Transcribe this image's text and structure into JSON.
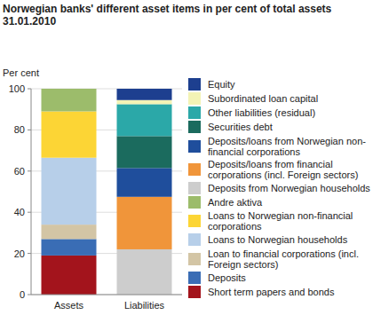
{
  "chart_data": {
    "type": "bar",
    "stacked": true,
    "title": "Norwegian banks' different asset items in per cent of total assets",
    "subtitle": "31.01.2010",
    "y_label": "Per cent",
    "categories": [
      "Assets",
      "Liabilities"
    ],
    "ylim": [
      0,
      100
    ],
    "yticks": [
      0,
      20,
      40,
      60,
      80,
      100
    ],
    "grid": true,
    "legend": "right",
    "series": [
      {
        "name": "Short term papers and bonds",
        "color": "#a3141c",
        "values": [
          19,
          null
        ]
      },
      {
        "name": "Deposits",
        "color": "#3a6db5",
        "values": [
          8,
          null
        ]
      },
      {
        "name": "Loan to financial corporations (incl. Foreign sectors)",
        "color": "#d3c5a5",
        "values": [
          7,
          null
        ]
      },
      {
        "name": "Loans to Norwegian households",
        "color": "#b7cfe9",
        "values": [
          32.5,
          null
        ]
      },
      {
        "name": "Loans to Norwegian non-financial corporations",
        "color": "#fcd535",
        "values": [
          22.5,
          null
        ]
      },
      {
        "name": "Andre aktiva",
        "color": "#9cbc6b",
        "values": [
          11,
          null
        ]
      },
      {
        "name": "Deposits from Norwegian households",
        "color": "#cdcdcd",
        "values": [
          null,
          22
        ]
      },
      {
        "name": "Deposits/loans from financial corporations (incl. Foreign sectors)",
        "color": "#f0953a",
        "values": [
          null,
          25.5
        ]
      },
      {
        "name": "Deposits/loans from Norwegian non-financial corporations",
        "color": "#1f4e9c",
        "values": [
          null,
          14
        ]
      },
      {
        "name": "Securities debt",
        "color": "#1b6b5e",
        "values": [
          null,
          15.5
        ]
      },
      {
        "name": "Other liabilities (residual)",
        "color": "#2ba8a8",
        "values": [
          null,
          15.5
        ]
      },
      {
        "name": "Subordinated loan capital",
        "color": "#f3f3b5",
        "values": [
          null,
          2
        ]
      },
      {
        "name": "Equity",
        "color": "#1d3f8f",
        "values": [
          null,
          5.5
        ]
      }
    ]
  }
}
